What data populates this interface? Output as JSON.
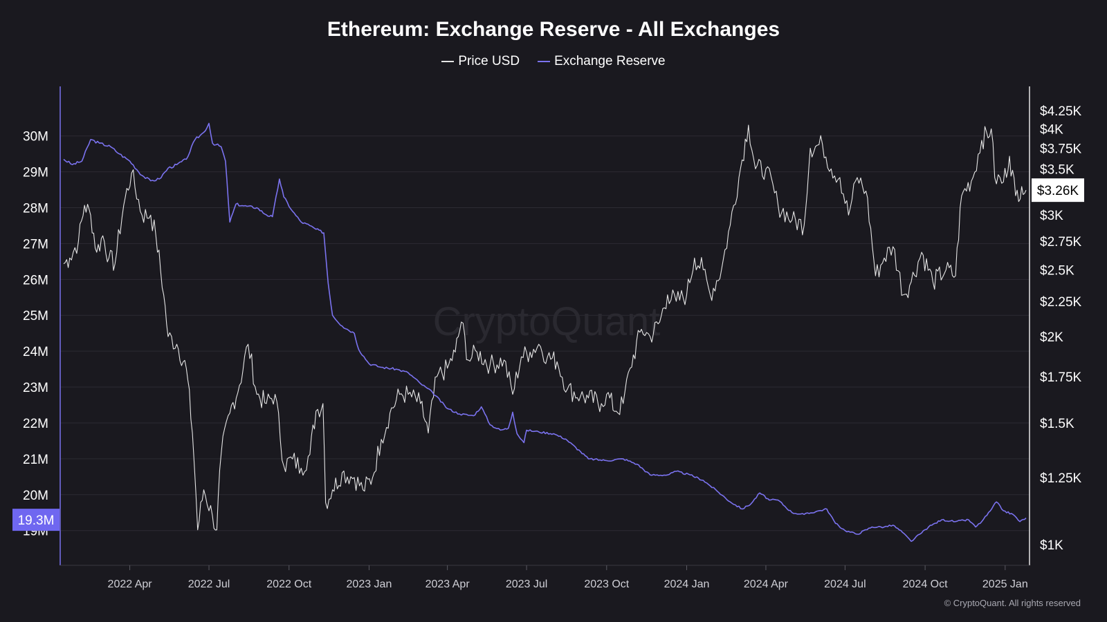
{
  "title": "Ethereum: Exchange Reserve - All Exchanges",
  "legend": [
    {
      "name": "Price USD",
      "color": "#e6e6e6"
    },
    {
      "name": "Exchange Reserve",
      "color": "#7b73f0"
    }
  ],
  "watermark": "CryptoQuant",
  "footer": "© CryptoQuant. All rights reserved",
  "colors": {
    "background": "#1a191f",
    "grid": "#2c2b33",
    "reserve": "#7b73f0",
    "price": "#e6e6e6",
    "badge_left": "#6f67f0",
    "badge_right_bg": "#ffffff",
    "badge_right_text": "#000000"
  },
  "chart_data": {
    "type": "line",
    "x_tick_labels": [
      "2022 Apr",
      "2022 Jul",
      "2022 Oct",
      "2023 Jan",
      "2023 Apr",
      "2023 Jul",
      "2023 Oct",
      "2024 Jan",
      "2024 Apr",
      "2024 Jul",
      "2024 Oct",
      "2025 Jan"
    ],
    "x_range": [
      "2022-01-15",
      "2025-01-25"
    ],
    "left_axis": {
      "tick_values": [
        19,
        20,
        21,
        22,
        23,
        24,
        25,
        26,
        27,
        28,
        29,
        30
      ],
      "tick_labels": [
        "19M",
        "20M",
        "21M",
        "22M",
        "23M",
        "24M",
        "25M",
        "26M",
        "27M",
        "28M",
        "29M",
        "30M"
      ],
      "range": [
        18.05,
        30.9
      ],
      "current_value": 19.3,
      "current_label": "19.3M"
    },
    "right_axis": {
      "scale": "log",
      "tick_values": [
        1000,
        1250,
        1500,
        1750,
        2000,
        2250,
        2500,
        2750,
        3000,
        3250,
        3500,
        3750,
        4000,
        4250
      ],
      "tick_labels": [
        "$1K",
        "$1.25K",
        "$1.5K",
        "$1.75K",
        "$2K",
        "$2.25K",
        "$2.5K",
        "$2.75K",
        "$3K",
        "",
        "$3.5K",
        "$3.75K",
        "$4K",
        "$4.25K"
      ],
      "range": [
        935,
        4350
      ],
      "current_value": 3260,
      "current_label": "$3.26K"
    },
    "series": [
      {
        "name": "Exchange Reserve",
        "axis": "left",
        "unit": "M ETH",
        "points": [
          [
            "2022-01-15",
            29.35
          ],
          [
            "2022-01-25",
            29.2
          ],
          [
            "2022-02-05",
            29.3
          ],
          [
            "2022-02-15",
            29.9
          ],
          [
            "2022-02-25",
            29.8
          ],
          [
            "2022-03-10",
            29.7
          ],
          [
            "2022-03-20",
            29.5
          ],
          [
            "2022-04-01",
            29.3
          ],
          [
            "2022-04-15",
            28.9
          ],
          [
            "2022-04-25",
            28.75
          ],
          [
            "2022-05-05",
            28.8
          ],
          [
            "2022-05-15",
            29.1
          ],
          [
            "2022-05-25",
            29.2
          ],
          [
            "2022-06-05",
            29.35
          ],
          [
            "2022-06-15",
            29.9
          ],
          [
            "2022-06-25",
            30.1
          ],
          [
            "2022-07-01",
            30.35
          ],
          [
            "2022-07-05",
            29.8
          ],
          [
            "2022-07-15",
            29.7
          ],
          [
            "2022-07-20",
            29.3
          ],
          [
            "2022-07-25",
            27.6
          ],
          [
            "2022-08-01",
            28.1
          ],
          [
            "2022-08-10",
            28.05
          ],
          [
            "2022-08-25",
            28.0
          ],
          [
            "2022-09-05",
            27.8
          ],
          [
            "2022-09-12",
            27.75
          ],
          [
            "2022-09-20",
            28.8
          ],
          [
            "2022-09-25",
            28.3
          ],
          [
            "2022-10-05",
            27.9
          ],
          [
            "2022-10-15",
            27.6
          ],
          [
            "2022-10-25",
            27.5
          ],
          [
            "2022-11-01",
            27.4
          ],
          [
            "2022-11-10",
            27.3
          ],
          [
            "2022-11-15",
            25.9
          ],
          [
            "2022-11-20",
            25.0
          ],
          [
            "2022-12-01",
            24.7
          ],
          [
            "2022-12-15",
            24.5
          ],
          [
            "2022-12-20",
            24.05
          ],
          [
            "2023-01-01",
            23.65
          ],
          [
            "2023-01-15",
            23.55
          ],
          [
            "2023-02-01",
            23.5
          ],
          [
            "2023-02-15",
            23.4
          ],
          [
            "2023-03-01",
            23.1
          ],
          [
            "2023-03-15",
            22.85
          ],
          [
            "2023-04-01",
            22.4
          ],
          [
            "2023-04-15",
            22.25
          ],
          [
            "2023-05-01",
            22.2
          ],
          [
            "2023-05-10",
            22.45
          ],
          [
            "2023-05-20",
            21.95
          ],
          [
            "2023-06-01",
            21.8
          ],
          [
            "2023-06-10",
            21.85
          ],
          [
            "2023-06-15",
            22.3
          ],
          [
            "2023-06-20",
            21.7
          ],
          [
            "2023-06-28",
            21.45
          ],
          [
            "2023-07-01",
            21.8
          ],
          [
            "2023-07-15",
            21.75
          ],
          [
            "2023-08-01",
            21.7
          ],
          [
            "2023-08-15",
            21.55
          ],
          [
            "2023-09-01",
            21.2
          ],
          [
            "2023-09-10",
            21.0
          ],
          [
            "2023-10-01",
            20.95
          ],
          [
            "2023-10-20",
            21.0
          ],
          [
            "2023-11-05",
            20.85
          ],
          [
            "2023-11-20",
            20.55
          ],
          [
            "2023-12-10",
            20.55
          ],
          [
            "2023-12-20",
            20.65
          ],
          [
            "2024-01-05",
            20.55
          ],
          [
            "2024-01-20",
            20.4
          ],
          [
            "2024-02-05",
            20.1
          ],
          [
            "2024-02-20",
            19.8
          ],
          [
            "2024-03-05",
            19.6
          ],
          [
            "2024-03-15",
            19.75
          ],
          [
            "2024-03-25",
            20.05
          ],
          [
            "2024-04-05",
            19.85
          ],
          [
            "2024-04-15",
            19.85
          ],
          [
            "2024-05-01",
            19.5
          ],
          [
            "2024-05-15",
            19.45
          ],
          [
            "2024-06-01",
            19.55
          ],
          [
            "2024-06-10",
            19.6
          ],
          [
            "2024-06-20",
            19.2
          ],
          [
            "2024-07-01",
            19.0
          ],
          [
            "2024-07-15",
            18.9
          ],
          [
            "2024-08-01",
            19.1
          ],
          [
            "2024-08-15",
            19.1
          ],
          [
            "2024-08-25",
            19.15
          ],
          [
            "2024-09-05",
            18.95
          ],
          [
            "2024-09-15",
            18.7
          ],
          [
            "2024-09-25",
            18.9
          ],
          [
            "2024-10-05",
            19.1
          ],
          [
            "2024-10-20",
            19.3
          ],
          [
            "2024-11-05",
            19.25
          ],
          [
            "2024-11-20",
            19.3
          ],
          [
            "2024-11-28",
            19.1
          ],
          [
            "2024-12-05",
            19.25
          ],
          [
            "2024-12-15",
            19.55
          ],
          [
            "2024-12-22",
            19.8
          ],
          [
            "2024-12-30",
            19.55
          ],
          [
            "2025-01-10",
            19.45
          ],
          [
            "2025-01-18",
            19.25
          ],
          [
            "2025-01-25",
            19.35
          ]
        ]
      },
      {
        "name": "Price USD",
        "axis": "right",
        "unit": "USD",
        "points": [
          [
            "2022-01-15",
            2550
          ],
          [
            "2022-01-22",
            2600
          ],
          [
            "2022-02-01",
            2750
          ],
          [
            "2022-02-08",
            3100
          ],
          [
            "2022-02-15",
            3000
          ],
          [
            "2022-02-22",
            2650
          ],
          [
            "2022-03-01",
            2800
          ],
          [
            "2022-03-08",
            2600
          ],
          [
            "2022-03-15",
            2550
          ],
          [
            "2022-03-25",
            3100
          ],
          [
            "2022-04-03",
            3450
          ],
          [
            "2022-04-15",
            3000
          ],
          [
            "2022-04-25",
            3000
          ],
          [
            "2022-05-01",
            2800
          ],
          [
            "2022-05-10",
            2300
          ],
          [
            "2022-05-15",
            2000
          ],
          [
            "2022-05-25",
            1950
          ],
          [
            "2022-06-05",
            1800
          ],
          [
            "2022-06-12",
            1450
          ],
          [
            "2022-06-18",
            1050
          ],
          [
            "2022-06-25",
            1200
          ],
          [
            "2022-07-05",
            1100
          ],
          [
            "2022-07-10",
            1050
          ],
          [
            "2022-07-15",
            1350
          ],
          [
            "2022-07-25",
            1550
          ],
          [
            "2022-08-05",
            1700
          ],
          [
            "2022-08-15",
            1950
          ],
          [
            "2022-08-25",
            1650
          ],
          [
            "2022-09-05",
            1600
          ],
          [
            "2022-09-15",
            1650
          ],
          [
            "2022-09-25",
            1300
          ],
          [
            "2022-10-05",
            1330
          ],
          [
            "2022-10-15",
            1290
          ],
          [
            "2022-10-25",
            1350
          ],
          [
            "2022-11-01",
            1560
          ],
          [
            "2022-11-09",
            1600
          ],
          [
            "2022-11-12",
            1150
          ],
          [
            "2022-11-20",
            1200
          ],
          [
            "2022-12-01",
            1270
          ],
          [
            "2022-12-15",
            1250
          ],
          [
            "2022-12-25",
            1200
          ],
          [
            "2023-01-05",
            1250
          ],
          [
            "2023-01-15",
            1420
          ],
          [
            "2023-01-25",
            1550
          ],
          [
            "2023-02-05",
            1650
          ],
          [
            "2023-02-15",
            1650
          ],
          [
            "2023-03-01",
            1600
          ],
          [
            "2023-03-10",
            1450
          ],
          [
            "2023-03-20",
            1750
          ],
          [
            "2023-04-01",
            1800
          ],
          [
            "2023-04-10",
            1900
          ],
          [
            "2023-04-17",
            2100
          ],
          [
            "2023-04-25",
            1850
          ],
          [
            "2023-05-05",
            1900
          ],
          [
            "2023-05-20",
            1820
          ],
          [
            "2023-06-05",
            1850
          ],
          [
            "2023-06-15",
            1650
          ],
          [
            "2023-06-25",
            1870
          ],
          [
            "2023-07-05",
            1900
          ],
          [
            "2023-07-15",
            1950
          ],
          [
            "2023-07-25",
            1870
          ],
          [
            "2023-08-05",
            1840
          ],
          [
            "2023-08-17",
            1680
          ],
          [
            "2023-09-01",
            1640
          ],
          [
            "2023-09-10",
            1630
          ],
          [
            "2023-09-25",
            1600
          ],
          [
            "2023-10-01",
            1650
          ],
          [
            "2023-10-12",
            1560
          ],
          [
            "2023-10-20",
            1600
          ],
          [
            "2023-10-28",
            1800
          ],
          [
            "2023-11-10",
            2050
          ],
          [
            "2023-11-20",
            2000
          ],
          [
            "2023-12-01",
            2100
          ],
          [
            "2023-12-10",
            2300
          ],
          [
            "2023-12-20",
            2250
          ],
          [
            "2024-01-01",
            2300
          ],
          [
            "2024-01-10",
            2600
          ],
          [
            "2024-01-20",
            2500
          ],
          [
            "2024-01-28",
            2300
          ],
          [
            "2024-02-10",
            2500
          ],
          [
            "2024-02-20",
            2900
          ],
          [
            "2024-03-01",
            3400
          ],
          [
            "2024-03-12",
            4050
          ],
          [
            "2024-03-20",
            3500
          ],
          [
            "2024-04-01",
            3500
          ],
          [
            "2024-04-15",
            3100
          ],
          [
            "2024-05-01",
            2950
          ],
          [
            "2024-05-15",
            2900
          ],
          [
            "2024-05-22",
            3750
          ],
          [
            "2024-06-05",
            3800
          ],
          [
            "2024-06-15",
            3500
          ],
          [
            "2024-06-25",
            3400
          ],
          [
            "2024-07-05",
            3000
          ],
          [
            "2024-07-15",
            3400
          ],
          [
            "2024-07-25",
            3250
          ],
          [
            "2024-08-05",
            2450
          ],
          [
            "2024-08-15",
            2600
          ],
          [
            "2024-08-25",
            2700
          ],
          [
            "2024-09-06",
            2300
          ],
          [
            "2024-09-15",
            2400
          ],
          [
            "2024-09-27",
            2650
          ],
          [
            "2024-10-10",
            2400
          ],
          [
            "2024-10-25",
            2500
          ],
          [
            "2024-11-05",
            2450
          ],
          [
            "2024-11-12",
            3200
          ],
          [
            "2024-11-25",
            3400
          ],
          [
            "2024-12-05",
            3850
          ],
          [
            "2024-12-16",
            4000
          ],
          [
            "2024-12-20",
            3400
          ],
          [
            "2024-12-30",
            3350
          ],
          [
            "2025-01-06",
            3650
          ],
          [
            "2025-01-13",
            3200
          ],
          [
            "2025-01-20",
            3300
          ],
          [
            "2025-01-25",
            3260
          ]
        ]
      }
    ]
  }
}
